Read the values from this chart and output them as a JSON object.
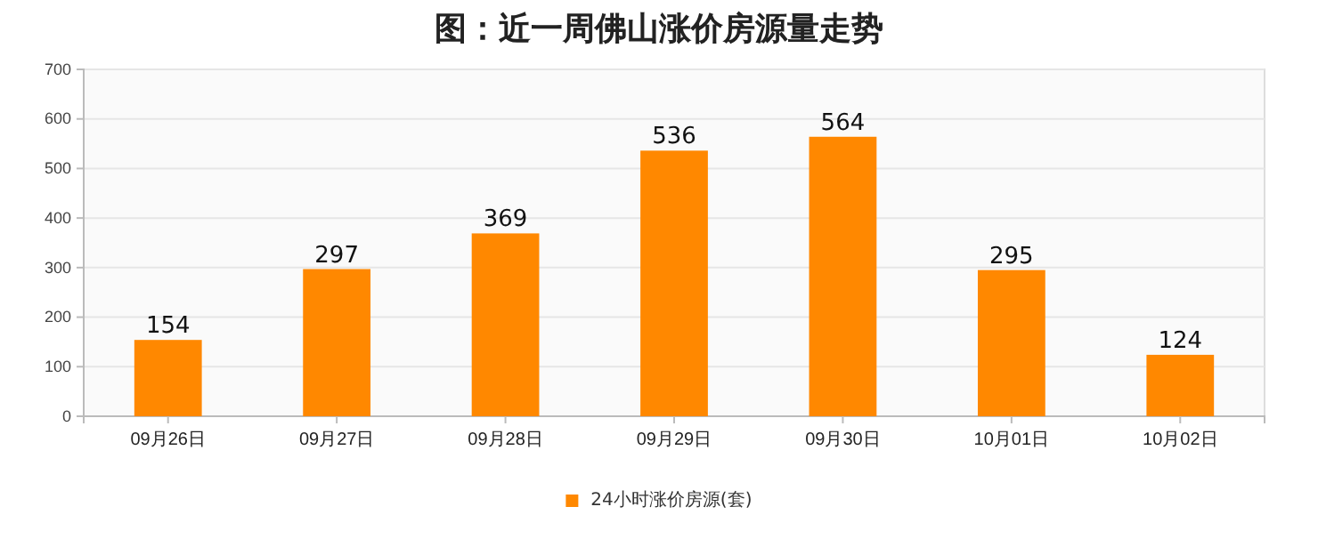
{
  "chart_data": {
    "type": "bar",
    "title": "图：近一周佛山涨价房源量走势",
    "categories": [
      "09月26日",
      "09月27日",
      "09月28日",
      "09月29日",
      "09月30日",
      "10月01日",
      "10月02日"
    ],
    "series": [
      {
        "name": "24小时涨价房源(套)",
        "color": "#ff8800",
        "values": [
          154,
          297,
          369,
          536,
          564,
          295,
          124
        ]
      }
    ],
    "ylim": [
      0,
      700
    ],
    "yticks": [
      0,
      100,
      200,
      300,
      400,
      500,
      600,
      700
    ],
    "grid": "y",
    "legend": "bottom",
    "data_labels": true
  }
}
